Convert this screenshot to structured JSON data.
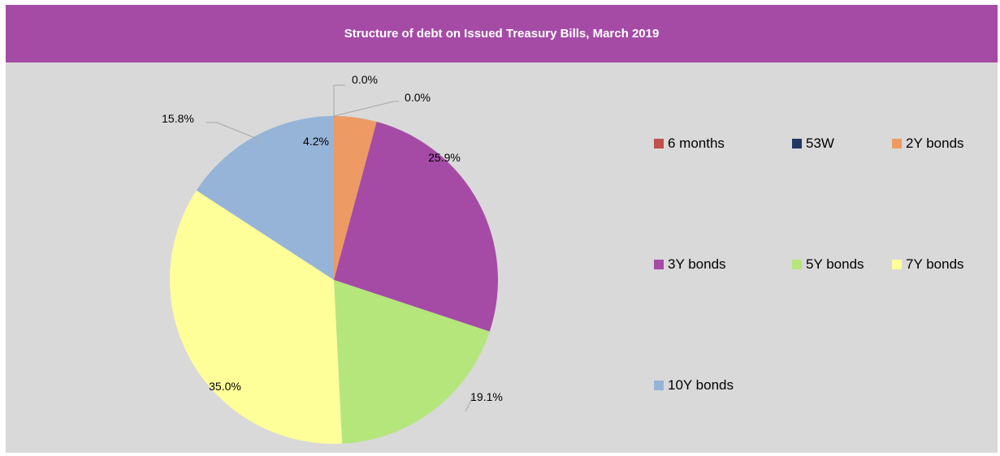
{
  "chart_data": {
    "type": "pie",
    "title": "Structure of debt on Issued Treasury Bills, March 2019",
    "categories": [
      "6 months",
      "53W",
      "2Y bonds",
      "3Y bonds",
      "5Y bonds",
      "7Y bonds",
      "10Y bonds"
    ],
    "values": [
      0.0,
      0.0,
      4.2,
      25.9,
      19.1,
      35.0,
      15.8
    ],
    "labels": [
      "0.0%",
      "0.0%",
      "4.2%",
      "25.9%",
      "19.1%",
      "35.0%",
      "15.8%"
    ],
    "colors": [
      "#c0504d",
      "#1f3864",
      "#ed9a64",
      "#a54ba6",
      "#b4e67c",
      "#ffff99",
      "#96b4d8"
    ],
    "legend_position": "right"
  }
}
